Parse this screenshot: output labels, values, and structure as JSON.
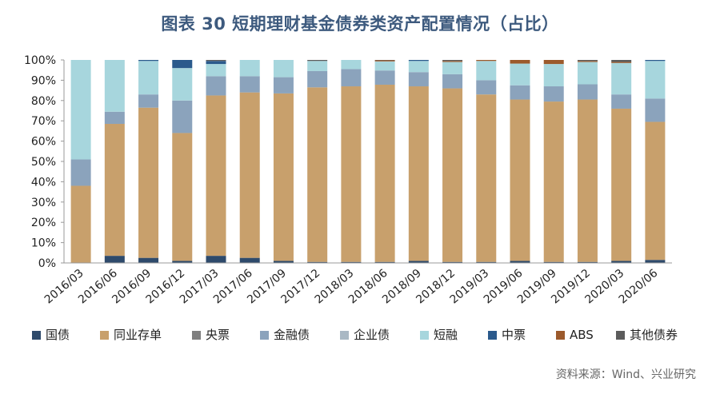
{
  "title": "图表 30 短期理财基金债券类资产配置情况（占比）",
  "source": "资料来源：Wind、兴业研究",
  "chart_data": {
    "type": "bar",
    "stacked": true,
    "categories": [
      "2016/03",
      "2016/06",
      "2016/09",
      "2016/12",
      "2017/03",
      "2017/06",
      "2017/09",
      "2017/12",
      "2018/03",
      "2018/06",
      "2018/09",
      "2018/12",
      "2019/03",
      "2019/06",
      "2019/09",
      "2019/12",
      "2020/03",
      "2020/06"
    ],
    "y_ticks": [
      "0%",
      "10%",
      "20%",
      "30%",
      "40%",
      "50%",
      "60%",
      "70%",
      "80%",
      "90%",
      "100%"
    ],
    "ylim": [
      0,
      100
    ],
    "legend_position": "bottom",
    "series": [
      {
        "name": "国债",
        "color": "#2e4a6b",
        "values": [
          0,
          3.5,
          2.5,
          1,
          3.5,
          2.5,
          1,
          0.5,
          0.5,
          0.5,
          1,
          0.5,
          0.5,
          1,
          0.5,
          0.5,
          1,
          1.5
        ]
      },
      {
        "name": "同业存单",
        "color": "#c8a06c",
        "values": [
          38,
          65,
          74,
          63,
          79,
          81.5,
          82.5,
          86,
          86.5,
          87.3,
          86,
          85.5,
          82.5,
          79.5,
          79,
          80,
          75,
          68
        ]
      },
      {
        "name": "央票",
        "color": "#7f7f7f",
        "values": [
          0,
          0,
          0,
          0,
          0,
          0,
          0,
          0,
          0,
          0,
          0,
          0,
          0,
          0,
          0,
          0,
          0,
          0
        ]
      },
      {
        "name": "金融债",
        "color": "#8ba3bc",
        "values": [
          13,
          6,
          6.5,
          16,
          9.5,
          8,
          8,
          8,
          8.5,
          7,
          7,
          7,
          7,
          7,
          7.5,
          7.5,
          7,
          11.5
        ]
      },
      {
        "name": "企业债",
        "color": "#a9b8c4",
        "values": [
          0,
          0,
          0,
          0,
          0,
          0,
          0,
          0,
          0,
          0,
          0,
          0,
          0,
          0,
          0,
          0,
          0,
          0
        ]
      },
      {
        "name": "短融",
        "color": "#a7d6dd",
        "values": [
          49,
          25.5,
          16.5,
          16,
          6,
          8,
          8.5,
          5,
          4.5,
          4.5,
          5.5,
          6,
          9.5,
          10.7,
          11,
          11,
          15.5,
          18.5
        ]
      },
      {
        "name": "中票",
        "color": "#2b5a8c",
        "values": [
          0,
          0,
          0.5,
          4,
          1.5,
          0,
          0,
          0,
          0,
          0,
          0.5,
          0,
          0,
          0,
          0,
          0,
          0,
          0.5
        ]
      },
      {
        "name": "ABS",
        "color": "#9c5a2c",
        "values": [
          0,
          0,
          0,
          0,
          0,
          0,
          0,
          0,
          0,
          0.5,
          0,
          0.5,
          0.5,
          1.8,
          2,
          0.5,
          0.5,
          0
        ]
      },
      {
        "name": "其他债券",
        "color": "#5c5c5c",
        "values": [
          0,
          0,
          0,
          0,
          0.5,
          0,
          0,
          0.5,
          0,
          0.2,
          0,
          0.5,
          0,
          0,
          0,
          0.5,
          1,
          0
        ]
      }
    ]
  }
}
